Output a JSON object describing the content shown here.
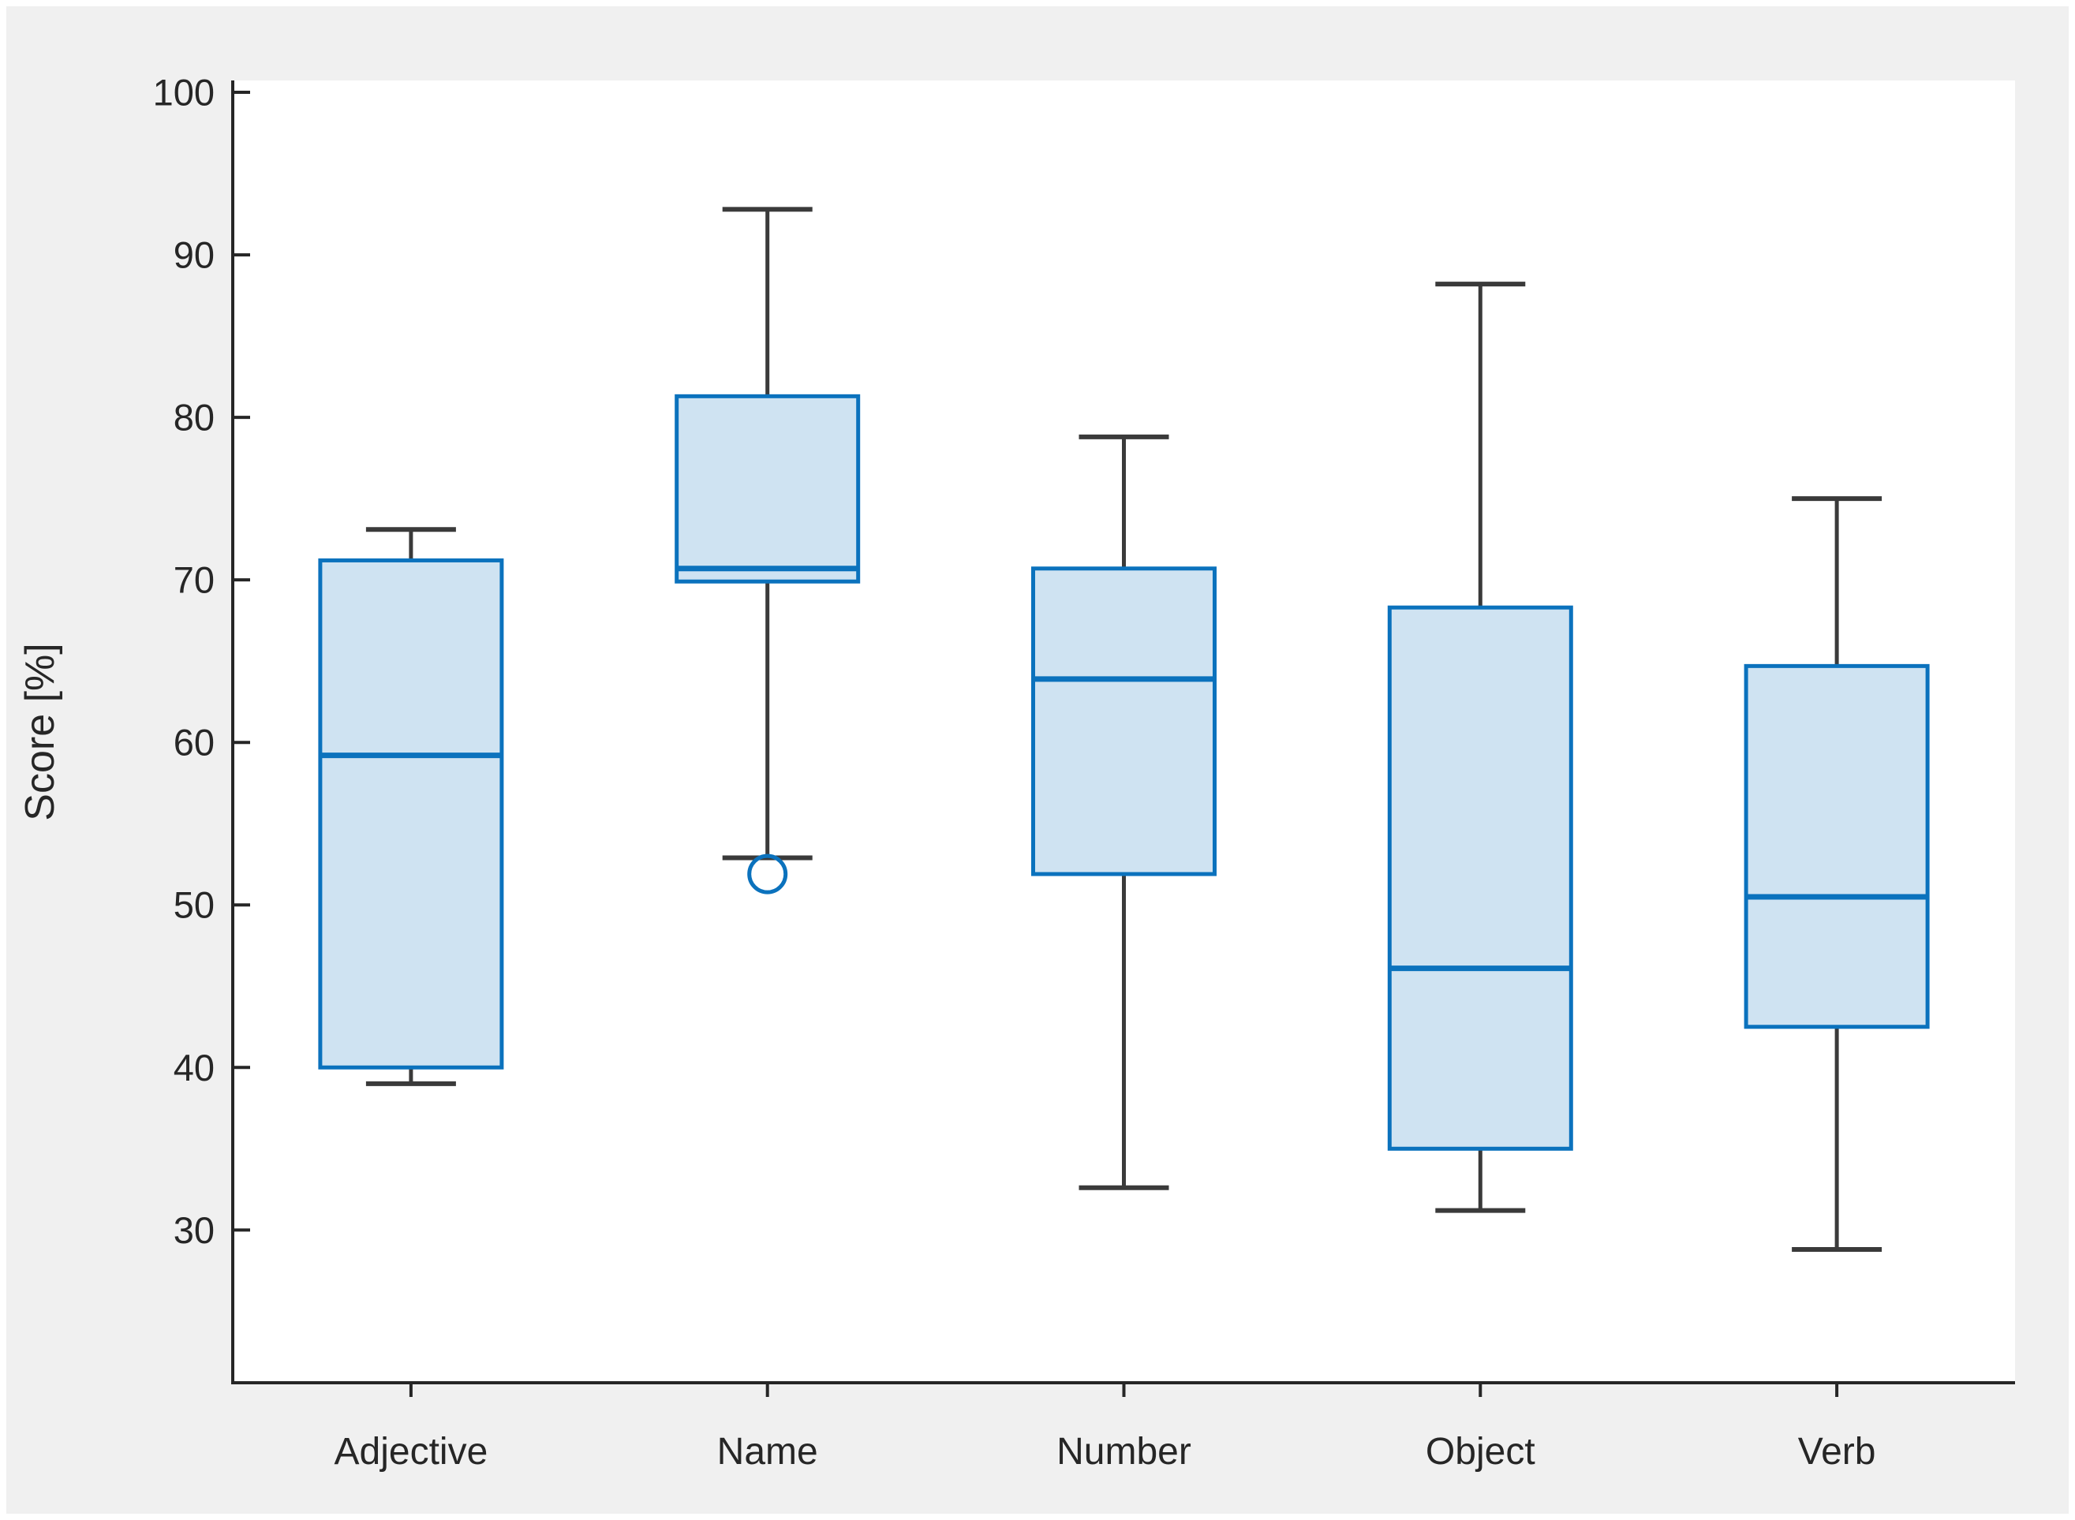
{
  "figure": {
    "background": "#f0f0f0",
    "plot_background": "#ffffff",
    "margin_color": "#ffffff"
  },
  "chart_data": {
    "type": "boxplot",
    "title": "",
    "xlabel": "",
    "ylabel": "Score [%]",
    "categories": [
      "Adjective",
      "Name",
      "Number",
      "Object",
      "Verb"
    ],
    "y_ticks": [
      30,
      40,
      50,
      60,
      70,
      80,
      90,
      100
    ],
    "ylim": [
      20.6,
      100.73
    ],
    "grid": false,
    "legend": "none",
    "series": [
      {
        "category": "Adjective",
        "whisker_low": 39.0,
        "q1": 40.0,
        "median": 59.2,
        "q3": 71.2,
        "whisker_high": 73.1,
        "outliers": []
      },
      {
        "category": "Name",
        "whisker_low": 52.9,
        "q1": 69.9,
        "median": 70.7,
        "q3": 81.3,
        "whisker_high": 92.8,
        "outliers": [
          51.9
        ]
      },
      {
        "category": "Number",
        "whisker_low": 32.6,
        "q1": 51.9,
        "median": 63.9,
        "q3": 70.7,
        "whisker_high": 78.8,
        "outliers": []
      },
      {
        "category": "Object",
        "whisker_low": 31.2,
        "q1": 35.0,
        "median": 46.1,
        "q3": 68.3,
        "whisker_high": 88.2,
        "outliers": []
      },
      {
        "category": "Verb",
        "whisker_low": 28.8,
        "q1": 42.5,
        "median": 50.5,
        "q3": 64.7,
        "whisker_high": 75.0,
        "outliers": []
      }
    ],
    "colors": {
      "box_fill": "#cfe3f2",
      "box_edge": "#0b72bd",
      "median_line": "#0b72bd",
      "whisker": "#3a3a3a",
      "outlier_edge": "#0b72bd",
      "axis_line": "#262626",
      "tick_label": "#262626"
    }
  }
}
